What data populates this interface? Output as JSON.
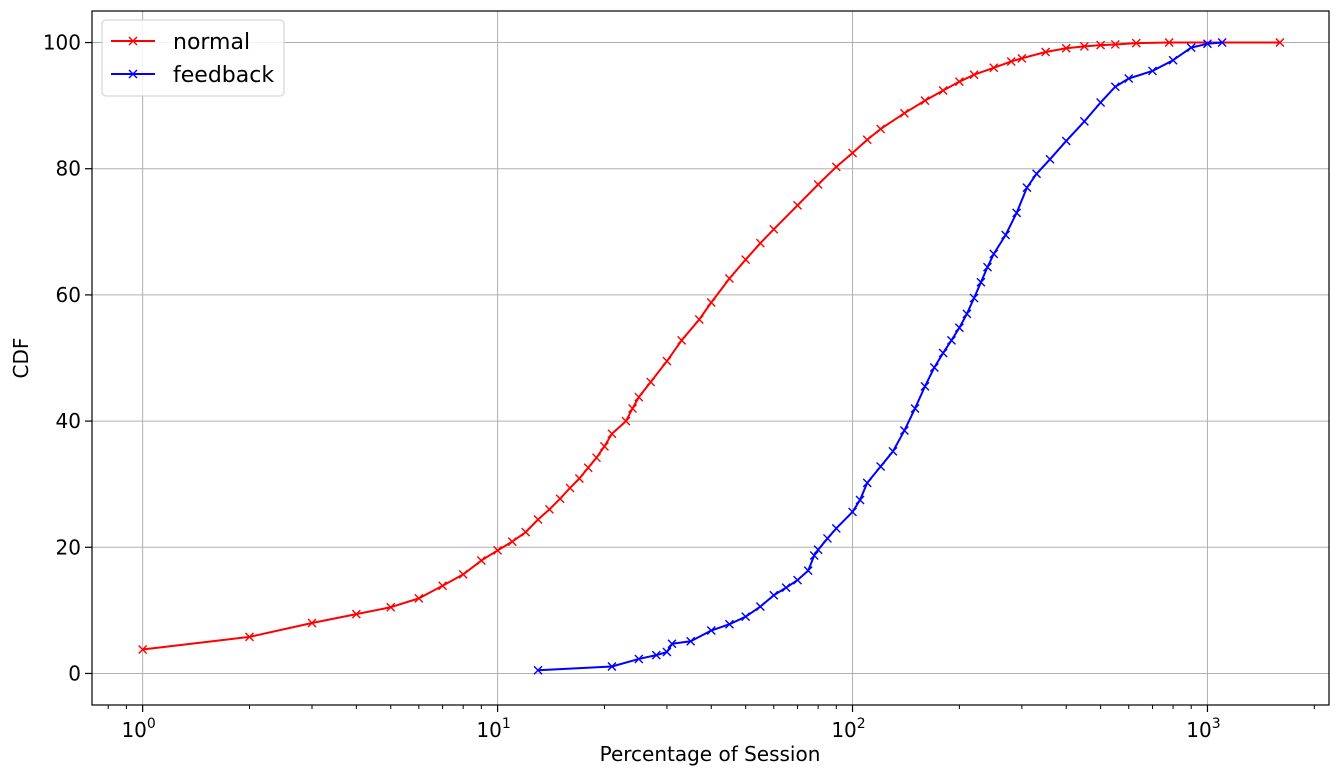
{
  "chart_data": {
    "type": "line",
    "title": "",
    "xlabel": "Percentage of Session",
    "ylabel": "CDF",
    "xscale": "log",
    "xlim": [
      0.72,
      2200
    ],
    "ylim": [
      -5,
      105
    ],
    "xticks": [
      {
        "value": 1,
        "label_base": "10",
        "label_exp": "0"
      },
      {
        "value": 10,
        "label_base": "10",
        "label_exp": "1"
      },
      {
        "value": 100,
        "label_base": "10",
        "label_exp": "2"
      },
      {
        "value": 1000,
        "label_base": "10",
        "label_exp": "3"
      }
    ],
    "yticks": [
      0,
      20,
      40,
      60,
      80,
      100
    ],
    "ytick_labels": [
      "0",
      "20",
      "40",
      "60",
      "80",
      "100"
    ],
    "grid": true,
    "legend_position": "top-left",
    "series": [
      {
        "name": "normal",
        "color": "#ff0000",
        "marker": "x",
        "x": [
          1,
          2,
          3,
          4,
          5,
          6,
          7,
          8,
          9,
          10,
          11,
          12,
          13,
          14,
          15,
          16,
          17,
          18,
          19,
          20,
          21,
          23,
          24,
          25,
          27,
          30,
          33,
          37,
          40,
          45,
          50,
          55,
          60,
          70,
          80,
          90,
          100,
          110,
          120,
          140,
          160,
          180,
          200,
          220,
          250,
          280,
          300,
          350,
          400,
          450,
          500,
          550,
          630,
          780,
          1600
        ],
        "y": [
          3.8,
          5.8,
          8,
          9.4,
          10.5,
          11.9,
          13.9,
          15.7,
          17.9,
          19.5,
          20.9,
          22.4,
          24.4,
          26,
          27.7,
          29.4,
          30.9,
          32.6,
          34.2,
          36,
          38,
          40,
          42,
          43.8,
          46.2,
          49.5,
          52.8,
          56.1,
          58.8,
          62.6,
          65.6,
          68.2,
          70.4,
          74.2,
          77.5,
          80.3,
          82.5,
          84.6,
          86.3,
          88.8,
          90.8,
          92.4,
          93.8,
          94.9,
          96,
          97,
          97.5,
          98.5,
          99.1,
          99.4,
          99.6,
          99.7,
          99.9,
          100,
          100
        ]
      },
      {
        "name": "feedback",
        "color": "#0000ff",
        "marker": "x",
        "x": [
          13,
          21,
          25,
          28,
          30,
          31,
          35,
          40,
          45,
          50,
          55,
          60,
          65,
          70,
          75,
          78,
          80,
          85,
          90,
          100,
          105,
          110,
          120,
          130,
          140,
          150,
          160,
          170,
          180,
          190,
          200,
          210,
          220,
          230,
          240,
          250,
          270,
          290,
          310,
          330,
          360,
          400,
          450,
          500,
          550,
          600,
          700,
          800,
          900,
          1000,
          1100
        ],
        "y": [
          0.5,
          1.1,
          2.3,
          2.9,
          3.4,
          4.7,
          5.1,
          6.8,
          7.8,
          9,
          10.6,
          12.4,
          13.6,
          14.8,
          16.3,
          18.7,
          19.6,
          21.4,
          23,
          25.6,
          27.5,
          30.2,
          32.8,
          35.2,
          38.5,
          42,
          45.5,
          48.5,
          50.8,
          52.8,
          54.8,
          57,
          59.5,
          62,
          64.4,
          66.5,
          69.5,
          73,
          77,
          79.2,
          81.5,
          84.4,
          87.5,
          90.5,
          93,
          94.3,
          95.5,
          97.2,
          99.2,
          99.8,
          100
        ]
      }
    ]
  }
}
